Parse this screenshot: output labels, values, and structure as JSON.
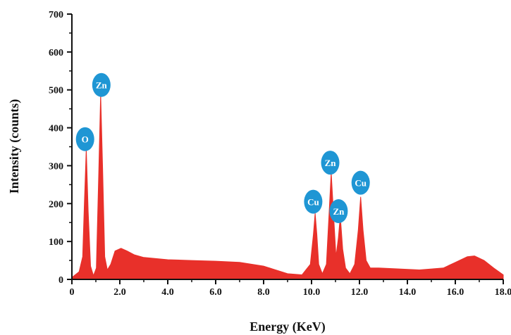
{
  "chart_data": {
    "type": "area",
    "title": "",
    "xlabel": "Energy (KeV)",
    "ylabel": "Intensity (counts)",
    "xlim": [
      0,
      18
    ],
    "ylim": [
      0,
      700
    ],
    "x_ticks": [
      "0",
      "2.0",
      "4.0",
      "6.0",
      "8.0",
      "10.0",
      "12.0",
      "14.0",
      "16.0",
      "18.0"
    ],
    "y_ticks": [
      "0",
      "100",
      "200",
      "300",
      "400",
      "500",
      "600",
      "700"
    ],
    "grid": false,
    "legend": "none",
    "series": [
      {
        "color": "#e8302a",
        "x": [
          0.0,
          0.3,
          0.45,
          0.52,
          0.6,
          0.68,
          0.78,
          0.9,
          1.02,
          1.12,
          1.2,
          1.28,
          1.37,
          1.48,
          1.62,
          1.8,
          2.05,
          2.3,
          2.6,
          3.0,
          4.0,
          5.0,
          6.0,
          7.0,
          8.0,
          9.0,
          9.6,
          9.95,
          10.08,
          10.15,
          10.22,
          10.3,
          10.45,
          10.62,
          10.72,
          10.82,
          10.92,
          11.02,
          11.12,
          11.2,
          11.3,
          11.42,
          11.6,
          11.8,
          11.95,
          12.05,
          12.15,
          12.28,
          12.45,
          12.8,
          13.5,
          14.5,
          15.5,
          16.0,
          16.5,
          16.8,
          17.2,
          17.6,
          18.0
        ],
        "y": [
          5,
          20,
          60,
          200,
          345,
          180,
          35,
          10,
          30,
          280,
          490,
          300,
          60,
          25,
          40,
          75,
          82,
          75,
          65,
          58,
          52,
          50,
          48,
          45,
          35,
          15,
          12,
          40,
          120,
          175,
          120,
          40,
          15,
          40,
          160,
          282,
          170,
          60,
          110,
          168,
          80,
          30,
          15,
          40,
          130,
          218,
          130,
          50,
          30,
          30,
          28,
          25,
          30,
          45,
          60,
          62,
          50,
          30,
          12
        ]
      }
    ],
    "peak_labels": [
      {
        "text": "O",
        "x": 0.55,
        "y": 370
      },
      {
        "text": "Zn",
        "x": 1.23,
        "y": 513
      },
      {
        "text": "Cu",
        "x": 10.07,
        "y": 205
      },
      {
        "text": "Zn",
        "x": 10.78,
        "y": 308
      },
      {
        "text": "Zn",
        "x": 11.13,
        "y": 180
      },
      {
        "text": "Cu",
        "x": 12.05,
        "y": 255
      }
    ],
    "label_color": "#1f96d4"
  }
}
